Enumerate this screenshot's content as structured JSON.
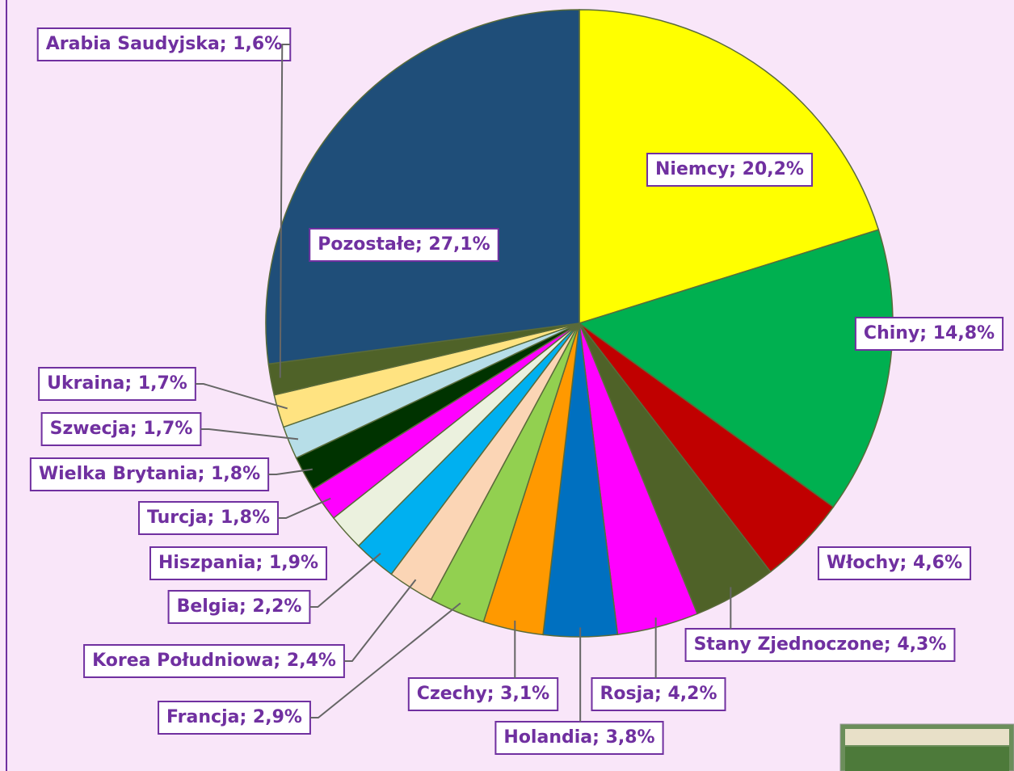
{
  "chart_data": {
    "type": "pie",
    "values": [
      20.2,
      14.8,
      4.6,
      4.3,
      4.2,
      3.8,
      3.1,
      2.9,
      2.4,
      2.2,
      1.9,
      1.8,
      1.8,
      1.7,
      1.7,
      1.6,
      27.1
    ],
    "value_labels": [
      "Niemcy; 20,2%",
      "Chiny; 14,8%",
      "Włochy; 4,6%",
      "Stany Zjednoczone; 4,3%",
      "Rosja; 4,2%",
      "Holandia; 3,8%",
      "Czechy; 3,1%",
      "Francja; 2,9%",
      "Korea Południowa; 2,4%",
      "Belgia; 2,2%",
      "Hiszpania; 1,9%",
      "Turcja; 1,8%",
      "Wielka Brytania; 1,8%",
      "Szwecja; 1,7%",
      "Ukraina; 1,7%",
      "Arabia Saudyjska; 1,6%",
      "Pozostałe; 27,1%"
    ],
    "colors": [
      "#ffff00",
      "#00b050",
      "#c00000",
      "#4f6228",
      "#ff00ff",
      "#0070c0",
      "#ff9900",
      "#92d050",
      "#fbd5b5",
      "#00b0f0",
      "#ebf1de",
      "#ff00ff",
      "#003300",
      "#b7dee8",
      "#ffe381",
      "#4f6228",
      "#1f4e79"
    ]
  }
}
